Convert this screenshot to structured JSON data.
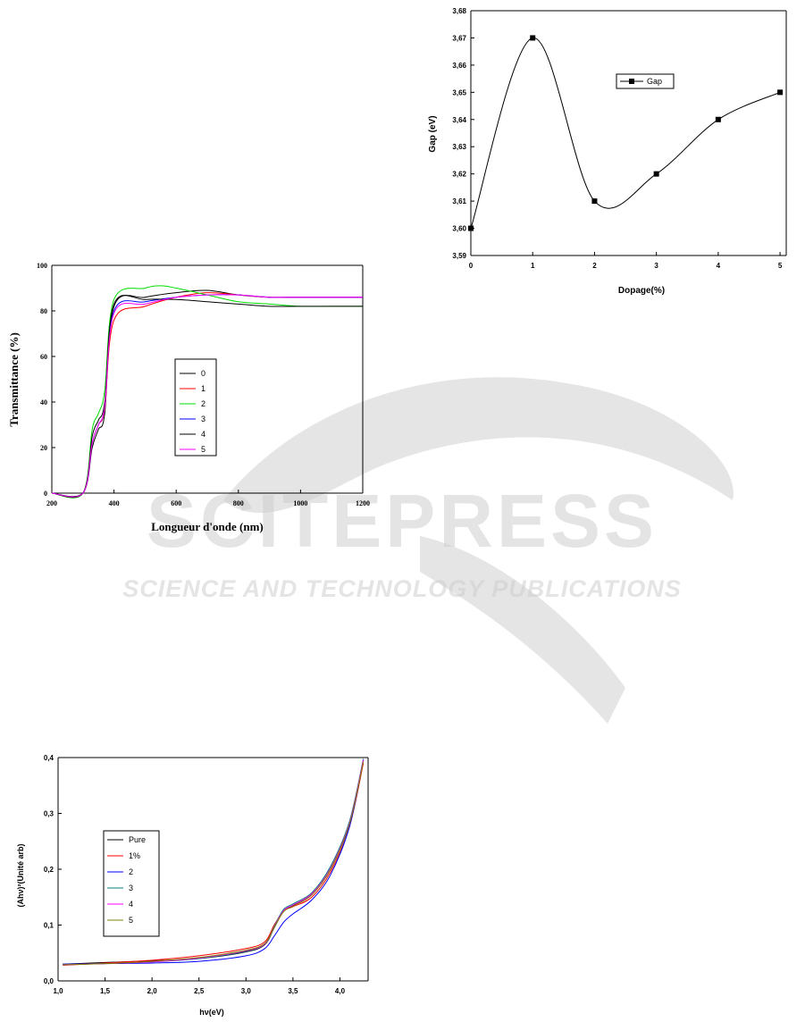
{
  "watermark": {
    "brand": "SCITEPRESS",
    "tagline": "SCIENCE AND TECHNOLOGY PUBLICATIONS"
  },
  "chart_data": [
    {
      "id": "gap",
      "type": "line",
      "title": "",
      "xlabel": "Dopage(%)",
      "ylabel": "Gap (eV)",
      "xlim": [
        0,
        5.1
      ],
      "ylim": [
        3.59,
        3.68
      ],
      "xticks": [
        "0",
        "1",
        "2",
        "3",
        "4",
        "5"
      ],
      "yticks": [
        "3,59",
        "3,60",
        "3,61",
        "3,62",
        "3,63",
        "3,64",
        "3,65",
        "3,66",
        "3,67",
        "3,68"
      ],
      "legend_position": "top-right",
      "series": [
        {
          "name": "Gap",
          "color": "#000000",
          "marker": "square",
          "x": [
            0,
            1,
            2,
            3,
            4,
            5
          ],
          "y": [
            3.6,
            3.67,
            3.61,
            3.62,
            3.64,
            3.65
          ]
        }
      ],
      "grid": false
    },
    {
      "id": "transmittance",
      "type": "line",
      "title": "",
      "xlabel": "Longueur d'onde (nm)",
      "ylabel": "Transmittance (%)",
      "xlim": [
        200,
        1200
      ],
      "ylim": [
        0,
        100
      ],
      "xticks": [
        "200",
        "400",
        "600",
        "800",
        "1000",
        "1200"
      ],
      "yticks": [
        "0",
        "20",
        "40",
        "60",
        "80",
        "100"
      ],
      "legend_position": "center",
      "series": [
        {
          "name": "0",
          "color": "#000000",
          "x": [
            200,
            300,
            330,
            350,
            370,
            400,
            500,
            600,
            700,
            800,
            900,
            1000,
            1100,
            1200
          ],
          "y": [
            0,
            0,
            20,
            28,
            35,
            82,
            86,
            88,
            89,
            87,
            86,
            86,
            86,
            86
          ]
        },
        {
          "name": "1",
          "color": "#ff0000",
          "x": [
            200,
            300,
            330,
            350,
            370,
            400,
            500,
            600,
            700,
            800,
            900,
            1000,
            1100,
            1200
          ],
          "y": [
            0,
            0,
            22,
            30,
            37,
            76,
            82,
            86,
            88,
            87,
            86,
            86,
            86,
            86
          ]
        },
        {
          "name": "2",
          "color": "#00dd00",
          "x": [
            200,
            300,
            330,
            350,
            370,
            400,
            500,
            550,
            600,
            700,
            800,
            900,
            1000,
            1100,
            1200
          ],
          "y": [
            0,
            0,
            28,
            35,
            45,
            85,
            90,
            91,
            90,
            87,
            84,
            83,
            82,
            82,
            82
          ]
        },
        {
          "name": "3",
          "color": "#0000ff",
          "x": [
            200,
            300,
            330,
            350,
            370,
            400,
            500,
            600,
            700,
            800,
            900,
            1000,
            1100,
            1200
          ],
          "y": [
            0,
            0,
            22,
            30,
            38,
            80,
            84,
            86,
            87,
            87,
            86,
            86,
            86,
            86
          ]
        },
        {
          "name": "4",
          "color": "#000000",
          "x": [
            200,
            300,
            330,
            350,
            370,
            400,
            500,
            600,
            700,
            800,
            900,
            1000,
            1100,
            1200
          ],
          "y": [
            0,
            0,
            25,
            32,
            40,
            83,
            85,
            85,
            84,
            83,
            82,
            82,
            82,
            82
          ]
        },
        {
          "name": "5",
          "color": "#ff00ff",
          "x": [
            200,
            300,
            330,
            350,
            370,
            400,
            500,
            600,
            700,
            800,
            900,
            1000,
            1100,
            1200
          ],
          "y": [
            0,
            0,
            22,
            30,
            38,
            79,
            83,
            86,
            87,
            87,
            86,
            86,
            86,
            86
          ]
        }
      ],
      "grid": false
    },
    {
      "id": "tauc",
      "type": "line",
      "title": "",
      "xlabel": "hν(eV)",
      "ylabel": "(Ahν)²(Unité arb)",
      "xlim": [
        1.0,
        4.3
      ],
      "ylim": [
        0.0,
        0.4
      ],
      "xticks": [
        "1,0",
        "1,5",
        "2,0",
        "2,5",
        "3,0",
        "3,5",
        "4,0"
      ],
      "yticks": [
        "0,0",
        "0,1",
        "0,2",
        "0,3",
        "0,4"
      ],
      "legend_position": "center-left",
      "series": [
        {
          "name": "Pure",
          "color": "#000000",
          "x": [
            1.05,
            1.5,
            2.0,
            2.5,
            3.0,
            3.2,
            3.3,
            3.4,
            3.5,
            3.7,
            3.9,
            4.1,
            4.25
          ],
          "y": [
            0.03,
            0.033,
            0.036,
            0.04,
            0.052,
            0.065,
            0.095,
            0.125,
            0.135,
            0.155,
            0.2,
            0.28,
            0.395
          ]
        },
        {
          "name": "1%",
          "color": "#ff0000",
          "x": [
            1.05,
            1.5,
            2.0,
            2.5,
            3.0,
            3.2,
            3.3,
            3.4,
            3.5,
            3.7,
            3.9,
            4.1,
            4.25
          ],
          "y": [
            0.028,
            0.032,
            0.037,
            0.045,
            0.058,
            0.07,
            0.1,
            0.125,
            0.133,
            0.15,
            0.195,
            0.275,
            0.39
          ]
        },
        {
          "name": "2",
          "color": "#0000ff",
          "x": [
            1.05,
            1.5,
            2.0,
            2.5,
            3.0,
            3.2,
            3.3,
            3.4,
            3.5,
            3.7,
            3.9,
            4.1,
            4.25
          ],
          "y": [
            0.03,
            0.031,
            0.032,
            0.035,
            0.045,
            0.058,
            0.08,
            0.105,
            0.12,
            0.145,
            0.19,
            0.275,
            0.395
          ]
        },
        {
          "name": "3",
          "color": "#008080",
          "x": [
            1.05,
            1.5,
            2.0,
            2.5,
            3.0,
            3.2,
            3.3,
            3.4,
            3.5,
            3.7,
            3.9,
            4.1,
            4.25
          ],
          "y": [
            0.029,
            0.031,
            0.034,
            0.04,
            0.053,
            0.066,
            0.098,
            0.128,
            0.138,
            0.158,
            0.205,
            0.285,
            0.398
          ]
        },
        {
          "name": "4",
          "color": "#ff00ff",
          "x": [
            1.05,
            1.5,
            2.0,
            2.5,
            3.0,
            3.2,
            3.3,
            3.4,
            3.5,
            3.7,
            3.9,
            4.1,
            4.25
          ],
          "y": [
            0.029,
            0.031,
            0.034,
            0.041,
            0.054,
            0.066,
            0.097,
            0.126,
            0.136,
            0.156,
            0.202,
            0.282,
            0.396
          ]
        },
        {
          "name": "5",
          "color": "#808000",
          "x": [
            1.05,
            1.5,
            2.0,
            2.5,
            3.0,
            3.2,
            3.3,
            3.4,
            3.5,
            3.7,
            3.9,
            4.1,
            4.25
          ],
          "y": [
            0.029,
            0.031,
            0.035,
            0.042,
            0.055,
            0.067,
            0.096,
            0.124,
            0.134,
            0.154,
            0.2,
            0.28,
            0.393
          ]
        }
      ],
      "grid": false
    }
  ]
}
